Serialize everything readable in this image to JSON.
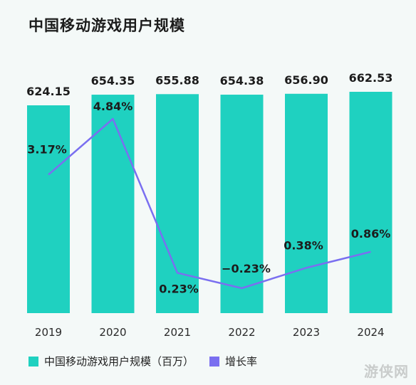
{
  "title": "中国移动游戏用户规模",
  "watermark": "游侠网",
  "colors": {
    "bar": "#1fd1c0",
    "line": "#7a6ff0",
    "text": "#1c1c1c"
  },
  "legend": {
    "bar_label": "中国移动游戏用户规模（百万）",
    "line_label": "增长率"
  },
  "chart_data": {
    "type": "bar",
    "categories": [
      "2019",
      "2020",
      "2021",
      "2022",
      "2023",
      "2024"
    ],
    "series": [
      {
        "name": "中国移动游戏用户规模（百万）",
        "type": "bar",
        "values": [
          624.15,
          654.35,
          655.88,
          654.38,
          656.9,
          662.53
        ],
        "labels": [
          "624.15",
          "654.35",
          "655.88",
          "654.38",
          "656.90",
          "662.53"
        ]
      },
      {
        "name": "增长率",
        "type": "line",
        "values": [
          3.17,
          4.84,
          0.23,
          -0.23,
          0.38,
          0.86
        ],
        "labels": [
          "3.17%",
          "4.84%",
          "0.23%",
          "−0.23%",
          "0.38%",
          "0.86%"
        ]
      }
    ]
  }
}
